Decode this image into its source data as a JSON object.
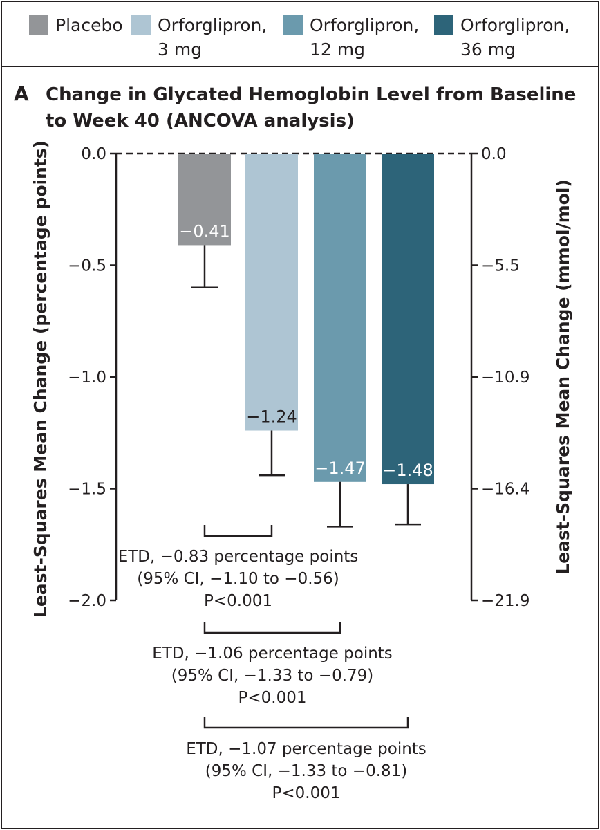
{
  "legend": [
    {
      "line1": "Placebo",
      "line2": "",
      "color": "#939598"
    },
    {
      "line1": "Orforglipron,",
      "line2": "3 mg",
      "color": "#aec5d3"
    },
    {
      "line1": "Orforglipron,",
      "line2": "12 mg",
      "color": "#6b9aad"
    },
    {
      "line1": "Orforglipron,",
      "line2": "36 mg",
      "color": "#2d6479"
    }
  ],
  "panel_letter": "A",
  "chart_data": {
    "type": "bar",
    "title": "Change in Glycated Hemoglobin Level from Baseline to Week 40 (ANCOVA analysis)",
    "title_lines": [
      "Change in Glycated Hemoglobin Level from Baseline",
      "to Week 40 (ANCOVA analysis)"
    ],
    "categories": [
      "Placebo",
      "Orforglipron, 3 mg",
      "Orforglipron, 12 mg",
      "Orforglipron, 36 mg"
    ],
    "values": [
      -0.41,
      -1.24,
      -1.47,
      -1.48
    ],
    "value_labels": [
      "−0.41",
      "−1.24",
      "−1.47",
      "−1.48"
    ],
    "error_lower": [
      -0.6,
      -1.44,
      -1.67,
      -1.66
    ],
    "colors": [
      "#939598",
      "#aec5d3",
      "#6b9aad",
      "#2d6479"
    ],
    "label_colors": [
      "#ffffff",
      "#231f20",
      "#ffffff",
      "#ffffff"
    ],
    "ylim": [
      -2.0,
      0.0
    ],
    "left_axis": {
      "title": "Least-Squares Mean Change (percentage points)",
      "ticks": [
        0.0,
        -0.5,
        -1.0,
        -1.5,
        -2.0
      ],
      "tick_labels": [
        "0.0",
        "−0.5",
        "−1.0",
        "−1.5",
        "−2.0"
      ]
    },
    "right_axis": {
      "title": "Least-Squares Mean Change (mmol/mol)",
      "ticks": [
        0.0,
        -0.5,
        -1.0,
        -1.5,
        -2.0
      ],
      "tick_labels": [
        "0.0",
        "−5.5",
        "−10.9",
        "−16.4",
        "−21.9"
      ]
    },
    "comparisons": [
      {
        "from": 0,
        "to": 1,
        "lines": [
          "ETD, −0.83 percentage points",
          "(95% CI, −1.10 to −0.56)",
          "P<0.001"
        ]
      },
      {
        "from": 0,
        "to": 2,
        "lines": [
          "ETD, −1.06 percentage points",
          "(95% CI, −1.33 to −0.79)",
          "P<0.001"
        ]
      },
      {
        "from": 0,
        "to": 3,
        "lines": [
          "ETD, −1.07 percentage points",
          "(95% CI, −1.33 to −0.81)",
          "P<0.001"
        ]
      }
    ]
  }
}
